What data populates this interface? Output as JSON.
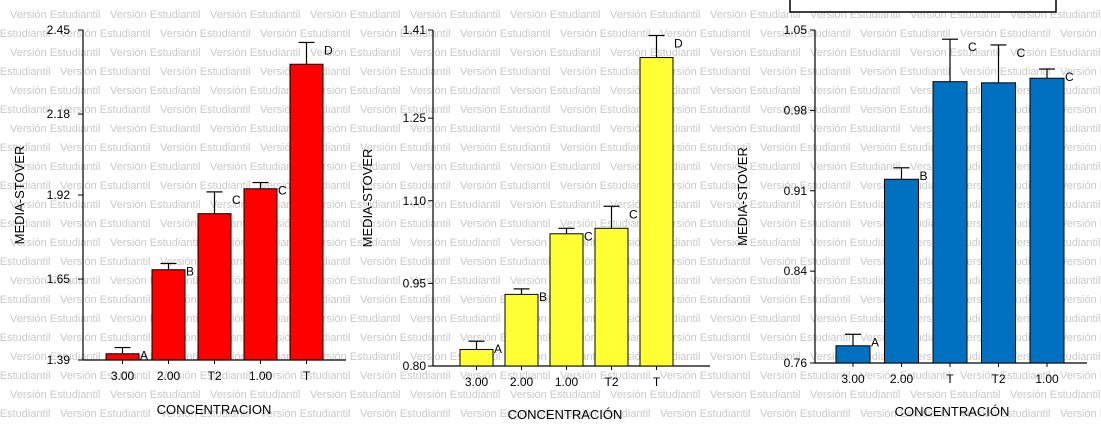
{
  "watermark": "Versión Estudiantil",
  "chart_data": [
    {
      "type": "bar",
      "color": "#ff0000",
      "xlabel": "CONCENTRACION",
      "ylabel": "MEDIA-STOVER",
      "ylim": [
        1.39,
        2.45
      ],
      "yticks": [
        "1.39",
        "1.65",
        "1.92",
        "2.18",
        "2.45"
      ],
      "categories": [
        "3.00",
        "2.00",
        "T2",
        "1.00",
        "T"
      ],
      "values": [
        1.41,
        1.68,
        1.86,
        1.94,
        2.34
      ],
      "errors": [
        0.02,
        0.02,
        0.07,
        0.02,
        0.07
      ],
      "letters": [
        "A",
        "B",
        "C",
        "C",
        "D"
      ]
    },
    {
      "type": "bar",
      "color": "#ffff33",
      "xlabel": "CONCENTRACIÓN",
      "ylabel": "MEDIA-STOVER",
      "ylim": [
        0.8,
        1.41
      ],
      "yticks": [
        "0.80",
        "0.95",
        "1.10",
        "1.25",
        "1.41"
      ],
      "categories": [
        "3.00",
        "2.00",
        "1.00",
        "T2",
        "T"
      ],
      "values": [
        0.83,
        0.93,
        1.04,
        1.05,
        1.36
      ],
      "errors": [
        0.015,
        0.01,
        0.01,
        0.04,
        0.04
      ],
      "letters": [
        "A",
        "B",
        "C",
        "C",
        "D"
      ]
    },
    {
      "type": "bar",
      "color": "#0070c0",
      "xlabel": "CONCENTRACIÓN",
      "ylabel": "MEDIA-STOVER",
      "ylim": [
        0.76,
        1.05
      ],
      "yticks": [
        "0.76",
        "0.84",
        "0.91",
        "0.98",
        "1.05"
      ],
      "categories": [
        "3.00",
        "2.00",
        "T",
        "T2",
        "1.00"
      ],
      "values": [
        0.775,
        0.92,
        1.005,
        1.004,
        1.008
      ],
      "errors": [
        0.01,
        0.01,
        0.037,
        0.033,
        0.008
      ],
      "letters": [
        "A",
        "B",
        "C",
        "C",
        "C"
      ]
    }
  ]
}
